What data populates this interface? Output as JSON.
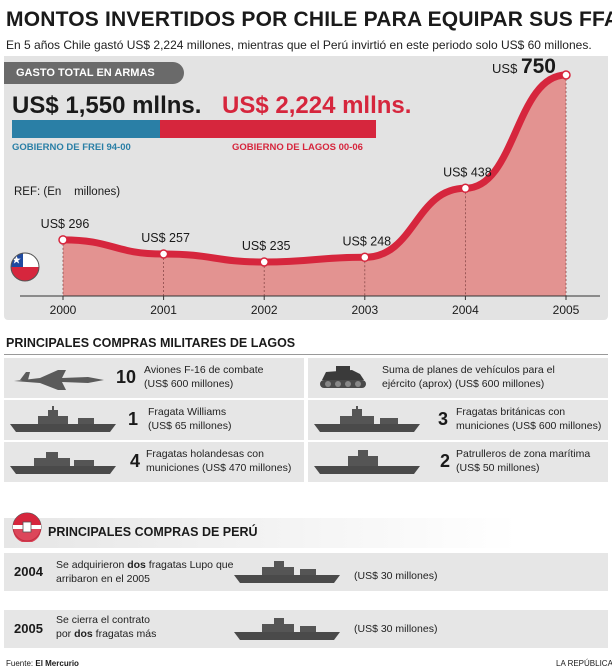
{
  "header": {
    "title": "MONTOS INVERTIDOS POR CHILE PARA EQUIPAR SUS FFAA",
    "subtitle": "En 5 años Chile gastó US$ 2,224 millones, mientras que el Perú invirtió en este periodo solo US$ 60 millones."
  },
  "gasto": {
    "tab_label": "GASTO TOTAL EN ARMAS",
    "frei_amount": "US$ 1,550 mllns.",
    "lagos_amount": "US$ 2,224 mllns.",
    "frei_label": "GOBIERNO DE FREI 94-00",
    "lagos_label": "GOBIERNO DE LAGOS 00-06",
    "frei_value": 1550,
    "lagos_value": 2224,
    "frei_color": "#2a7fa6",
    "lagos_color": "#d6263d"
  },
  "chart_data": {
    "type": "area",
    "title": "GASTO TOTAL EN ARMAS",
    "ylabel": "REF: (En    millones)",
    "categories": [
      "2000",
      "2001",
      "2002",
      "2003",
      "2004",
      "2005"
    ],
    "values": [
      296,
      257,
      235,
      248,
      438,
      750
    ],
    "labels": [
      "US$ 296",
      "US$ 257",
      "US$ 235",
      "US$ 248",
      "US$ 438",
      "US$ 750"
    ],
    "ylim": [
      0,
      800
    ],
    "line_color": "#d6263d",
    "fill_color": "#e39391"
  },
  "chile": {
    "section_title": "PRINCIPALES COMPRAS MILITARES DE LAGOS",
    "items": [
      {
        "num": "10",
        "line1": "Aviones F-16 de combate",
        "line2": "(US$ 600 millones)",
        "icon": "fighter-jet-icon"
      },
      {
        "num": "",
        "line1": "Suma de planes de vehículos para el",
        "line2": "ejército (aprox) (US$ 600 millones)",
        "icon": "tank-icon"
      },
      {
        "num": "1",
        "line1": "Fragata Williams",
        "line2": "(US$ 65 millones)",
        "icon": "frigate-icon"
      },
      {
        "num": "3",
        "line1": "Fragatas británicas con",
        "line2": "municiones (US$ 600 millones)",
        "icon": "frigate-icon"
      },
      {
        "num": "4",
        "line1": "Fragatas holandesas con",
        "line2": "municiones (US$ 470 millones)",
        "icon": "frigate-icon"
      },
      {
        "num": "2",
        "line1": "Patrulleros de zona marítima",
        "line2": "(US$ 50 millones)",
        "icon": "patrol-boat-icon"
      }
    ]
  },
  "peru": {
    "section_title": "PRINCIPALES COMPRAS DE PERÚ",
    "rows": [
      {
        "year": "2004",
        "pre": "Se adquirieron ",
        "bold": "dos",
        "post": " fragatas Lupo que",
        "line2": "arribaron en el 2005",
        "amount": "(US$ 30 millones)"
      },
      {
        "year": "2005",
        "pre": "Se cierra el contrato",
        "bold": "",
        "post": "",
        "line2_pre": "por ",
        "line2_bold": "dos",
        "line2_post": " fragatas más",
        "amount": "(US$ 30 millones)"
      }
    ]
  },
  "footer": {
    "source_prefix": "Fuente: ",
    "source": "El Mercurio",
    "credit": "LA REPÚBLICA"
  }
}
